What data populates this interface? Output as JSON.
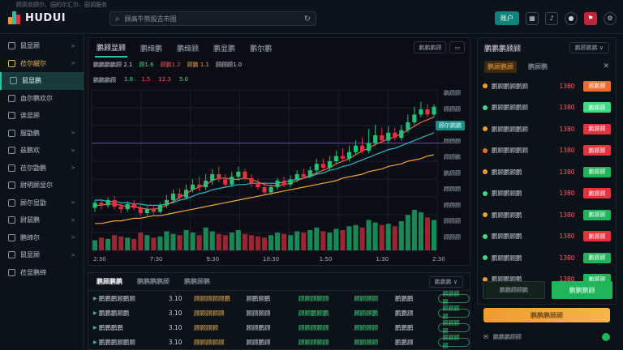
{
  "app": {
    "name": "HUDUI",
    "subtitle": "顾高欢顾尔、园的尔汇尔、园调服务"
  },
  "search": {
    "placeholder": "顾高牛熊股吉市图"
  },
  "topbar": {
    "primary_label": "账户",
    "icons": [
      "grid-icon",
      "bell-icon",
      "user-icon",
      "flag-icon",
      "settings-icon"
    ]
  },
  "sidebar": {
    "items": [
      {
        "label": "鼠显顾",
        "chevron": ">",
        "state": "normal"
      },
      {
        "label": "莅尔觎尔",
        "chevron": ">",
        "state": "highlight"
      },
      {
        "label": "鼠显鹏",
        "chevron": "",
        "state": "active"
      },
      {
        "label": "血尔鹏欢尔",
        "chevron": "",
        "state": "normal"
      },
      {
        "label": "诶显顾",
        "chevron": "",
        "state": "normal"
      },
      {
        "label": "服勖鹏",
        "chevron": ">",
        "state": "normal"
      },
      {
        "label": "兹鹏欢",
        "chevron": ">",
        "state": "normal"
      },
      {
        "label": "莅尔勖鹏",
        "chevron": ">",
        "state": "normal"
      },
      {
        "label": "尉明顾显尔",
        "chevron": "",
        "state": "normal"
      },
      {
        "label": "顾尔显勖",
        "chevron": ">",
        "state": "normal"
      },
      {
        "label": "尉鼠鹏",
        "chevron": ">",
        "state": "normal"
      },
      {
        "label": "鹏缔尔",
        "chevron": ">",
        "state": "normal"
      },
      {
        "label": "鼠显顾",
        "chevron": ">",
        "state": "normal"
      },
      {
        "label": "莅显鹏缔",
        "chevron": "",
        "state": "normal"
      }
    ]
  },
  "chart_panel": {
    "tabs": [
      "鹏顾显顾",
      "鹏缔鹏",
      "鹏缔顾",
      "鹏显鹏",
      "鹏尔鹏"
    ],
    "active_tab": 0,
    "controls": [
      "鹏鹏鹏顾",
      "▭"
    ],
    "indicators_line1": [
      {
        "text": "鹏鹏鹏鹏顾 2.1",
        "color": "c"
      },
      {
        "text": "顾1.6",
        "color": "g"
      },
      {
        "text": "顾鹏1.2",
        "color": "r"
      },
      {
        "text": "顾鹏 1.1",
        "color": "o"
      },
      {
        "text": "顾顾顾1.0",
        "color": "c"
      }
    ],
    "indicators_line2": [
      {
        "text": "鹏鹏鹏顾",
        "color": "c"
      },
      {
        "text": "1.8",
        "color": "g"
      },
      {
        "text": "1.5",
        "color": "r"
      },
      {
        "text": "12.3",
        "color": "r"
      },
      {
        "text": "5.0",
        "color": "g"
      }
    ],
    "current_price_label": "顾尔鹏鹏"
  },
  "chart_data": {
    "type": "candlestick",
    "price_axis_labels": [
      "鹏顾顾",
      "顾顾顾",
      "鹏顾顾",
      "顾顾顾",
      "顾顾鹏",
      "鹏顾顾",
      "顾顾顾",
      "顾顾顾",
      "顾顾顾",
      "顾顾顾"
    ],
    "time_axis_labels": [
      "2:30",
      "7:30",
      "9:30",
      "10:30",
      "1:50",
      "1:30",
      "2:30"
    ],
    "candles": [
      [
        34,
        38,
        31,
        40
      ],
      [
        38,
        36,
        33,
        41
      ],
      [
        36,
        40,
        34,
        42
      ],
      [
        40,
        35,
        33,
        43
      ],
      [
        35,
        33,
        30,
        38
      ],
      [
        33,
        37,
        31,
        39
      ],
      [
        37,
        34,
        32,
        40
      ],
      [
        34,
        30,
        28,
        37
      ],
      [
        30,
        33,
        28,
        35
      ],
      [
        33,
        31,
        29,
        36
      ],
      [
        31,
        36,
        30,
        38
      ],
      [
        36,
        40,
        34,
        44
      ],
      [
        40,
        45,
        38,
        48
      ],
      [
        45,
        42,
        40,
        49
      ],
      [
        42,
        48,
        41,
        52
      ],
      [
        48,
        52,
        46,
        56
      ],
      [
        52,
        50,
        47,
        58
      ],
      [
        50,
        55,
        48,
        60
      ],
      [
        55,
        60,
        52,
        64
      ],
      [
        60,
        56,
        54,
        66
      ],
      [
        56,
        52,
        50,
        60
      ],
      [
        52,
        58,
        50,
        62
      ],
      [
        58,
        62,
        55,
        66
      ],
      [
        62,
        57,
        55,
        64
      ],
      [
        57,
        53,
        50,
        60
      ],
      [
        53,
        50,
        48,
        56
      ],
      [
        50,
        46,
        44,
        54
      ],
      [
        46,
        50,
        44,
        52
      ],
      [
        50,
        55,
        48,
        57
      ],
      [
        55,
        52,
        50,
        58
      ],
      [
        52,
        56,
        50,
        59
      ],
      [
        56,
        60,
        54,
        63
      ],
      [
        60,
        58,
        56,
        64
      ],
      [
        58,
        63,
        57,
        66
      ],
      [
        63,
        68,
        60,
        72
      ],
      [
        68,
        65,
        63,
        72
      ],
      [
        65,
        70,
        63,
        74
      ],
      [
        70,
        74,
        68,
        78
      ],
      [
        74,
        72,
        70,
        80
      ],
      [
        72,
        77,
        70,
        82
      ],
      [
        77,
        82,
        75,
        86
      ],
      [
        82,
        78,
        76,
        88
      ],
      [
        78,
        84,
        76,
        95
      ],
      [
        84,
        90,
        82,
        98
      ],
      [
        90,
        86,
        84,
        96
      ],
      [
        86,
        92,
        84,
        97
      ],
      [
        92,
        88,
        86,
        96
      ],
      [
        88,
        94,
        86,
        98
      ],
      [
        94,
        100,
        92,
        106
      ],
      [
        100,
        106,
        98,
        112
      ],
      [
        106,
        110,
        104,
        116
      ],
      [
        110,
        106,
        104,
        114
      ],
      [
        106,
        112,
        104,
        114
      ]
    ],
    "volumes": [
      8,
      10,
      9,
      12,
      11,
      10,
      9,
      14,
      12,
      10,
      11,
      15,
      13,
      12,
      16,
      14,
      12,
      18,
      15,
      13,
      12,
      14,
      16,
      13,
      12,
      11,
      10,
      12,
      14,
      13,
      12,
      15,
      14,
      16,
      18,
      15,
      14,
      17,
      16,
      19,
      20,
      18,
      24,
      22,
      20,
      21,
      19,
      23,
      28,
      32,
      30,
      26,
      24
    ],
    "ma_fast": [
      36,
      36,
      37,
      37,
      36,
      35,
      35,
      34,
      33,
      33,
      34,
      36,
      39,
      42,
      45,
      48,
      50,
      52,
      55,
      57,
      57,
      56,
      56,
      57,
      56,
      54,
      52,
      51,
      51,
      52,
      53,
      55,
      57,
      59,
      61,
      63,
      65,
      68,
      70,
      72,
      75,
      78,
      80,
      83,
      85,
      87,
      89,
      91,
      94,
      97,
      100,
      102,
      104
    ],
    "ma_mid": [
      40,
      40,
      39,
      39,
      38,
      38,
      37,
      37,
      36,
      36,
      36,
      37,
      38,
      40,
      41,
      43,
      45,
      46,
      48,
      49,
      50,
      51,
      52,
      52,
      53,
      53,
      53,
      53,
      53,
      54,
      55,
      56,
      57,
      58,
      60,
      61,
      63,
      64,
      66,
      67,
      69,
      71,
      73,
      75,
      77,
      79,
      80,
      82,
      84,
      86,
      88,
      90,
      92
    ],
    "ma_slow": [
      22,
      22,
      23,
      24,
      24,
      25,
      26,
      26,
      27,
      28,
      28,
      29,
      30,
      31,
      32,
      33,
      34,
      35,
      36,
      37,
      38,
      39,
      40,
      41,
      42,
      43,
      44,
      45,
      46,
      47,
      48,
      49,
      50,
      51,
      52,
      53,
      54,
      55,
      57,
      58,
      59,
      60,
      62,
      63,
      64,
      66,
      67,
      68,
      70,
      71,
      72,
      74,
      75
    ],
    "y_range": [
      10,
      125
    ],
    "horizontal_marker": 84
  },
  "table": {
    "tabs": [
      "鹏顾鹏鹏",
      "鹏鹏鹏鹏顾",
      "鹏鹏顾鹏"
    ],
    "active_tab": 0,
    "more": "鹏鹏鹏 ∨",
    "rows": [
      {
        "name": "鹏鹏鹏顾鹏顾",
        "v1": "3.10",
        "v2": "顾顾顾顾顾鹏",
        "v3": "顾鹏顾鹏",
        "v4": "顾顾顾顾顾",
        "v5": "顾顾顾顾",
        "v6": "鹏鹏鹏",
        "badge": "顾顾顾顾"
      },
      {
        "name": "鹏鹏鹏顾鹏",
        "v1": "3.10",
        "v2": "顾顾顾顾顾",
        "v3": "顾顾顾顾",
        "v4": "顾顾鹏顾鹏",
        "v5": "顾顾顾鹏",
        "v6": "鹏鹏顾",
        "badge": "顾顾顾顾"
      },
      {
        "name": "鹏鹏鹏鹏",
        "v1": "3.10",
        "v2": "顾顾顾顾",
        "v3": "顾顾鹏顾",
        "v4": "顾顾顾顾顾",
        "v5": "顾顾顾顾",
        "v6": "鹏鹏鹏",
        "badge": "顾顾顾顾"
      },
      {
        "name": "鹏鹏鹏顾鹏顾",
        "v1": "3.10",
        "v2": "顾顾顾顾顾",
        "v3": "顾顾鹏顾",
        "v4": "顾顾顾顾顾",
        "v5": "顾顾顾顾",
        "v6": "鹏鹏顾",
        "badge": "顾顾顾顾"
      }
    ]
  },
  "watchlist": {
    "title": "鹏鹏鹏顾顾",
    "control": "鹏顾鹏鹏 ∨",
    "tabs": [
      "鹏顾鹏顾",
      "鹏顾鹏"
    ],
    "close": "✕",
    "items": [
      {
        "name": "鹏顾鹏顾鹏顾",
        "price": "1380",
        "change": "顾鹏顾",
        "dot": "#f29a2e",
        "chg_color": "#f26b2e"
      },
      {
        "name": "鹏顾鹏顾鹏顾",
        "price": "1380",
        "change": "鹏顾顾",
        "dot": "#3ddc84",
        "chg_color": "#3ddc84"
      },
      {
        "name": "鹏顾鹏顾鹏顾",
        "price": "1380",
        "change": "鹏顾顾",
        "dot": "#f29a2e",
        "chg_color": "#e8313f"
      },
      {
        "name": "鹏顾鹏顾鹏顾",
        "price": "1380",
        "change": "鹏顾顾",
        "dot": "#f26b2e",
        "chg_color": "#e8313f"
      },
      {
        "name": "鹏顾鹏顾鹏",
        "price": "1380",
        "change": "鹏顾顾",
        "dot": "#f29a2e",
        "chg_color": "#21b55b"
      },
      {
        "name": "鹏顾鹏顾鹏",
        "price": "1380",
        "change": "鹏顾顾",
        "dot": "#3ddc84",
        "chg_color": "#e8313f"
      },
      {
        "name": "鹏顾鹏顾鹏",
        "price": "1380",
        "change": "鹏顾顾",
        "dot": "#f29a2e",
        "chg_color": "#21b55b"
      },
      {
        "name": "鹏顾鹏顾鹏",
        "price": "1380",
        "change": "鹏顾顾",
        "dot": "#3ddc84",
        "chg_color": "#e8313f"
      },
      {
        "name": "鹏顾鹏顾鹏",
        "price": "1380",
        "change": "鹏顾顾",
        "dot": "#3ddc84",
        "chg_color": "#21b55b"
      },
      {
        "name": "鹏顾鹏顾鹏",
        "price": "1380",
        "change": "鹏顾顾",
        "dot": "#f29a2e",
        "chg_color": "#21b55b"
      }
    ],
    "footer_left": "鹏鹏顾顾鹏",
    "footer_right": "鹏鹏鹏顾"
  },
  "actions": {
    "orange_button": "鹏鹏鹏顾顾",
    "bottom_info": "鹏鹏鹏顾顾"
  },
  "colors": {
    "up": "#21c276",
    "down": "#e8313f",
    "accent": "#2ac1a4",
    "orange": "#f29a2e"
  }
}
